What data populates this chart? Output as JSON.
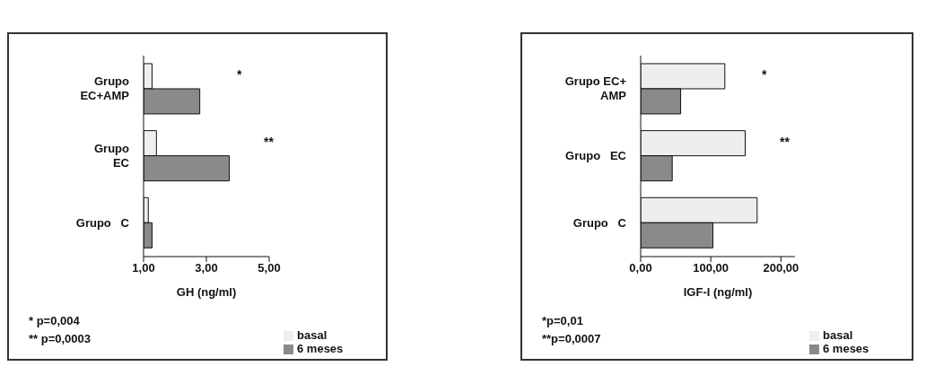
{
  "chart_data": [
    {
      "type": "bar",
      "orientation": "horizontal",
      "categories": [
        "Grupo\nEC+AMP",
        "Grupo\nEC",
        "Grupo   C"
      ],
      "xlabel": "GH (ng/ml)",
      "xlim": [
        1,
        5
      ],
      "xticks": [
        {
          "value": 1,
          "label": "1,00"
        },
        {
          "value": 3,
          "label": "3,00"
        },
        {
          "value": 5,
          "label": "5,00"
        }
      ],
      "legend": "bottom right",
      "grid": false,
      "series": [
        {
          "name": "basal",
          "color": "#eeeeee",
          "values": [
            1.27,
            1.41,
            1.15
          ]
        },
        {
          "name": "6 meses",
          "color": "#8a8a8a",
          "values": [
            2.79,
            3.73,
            1.27
          ]
        }
      ],
      "annotations": [
        {
          "text": "*",
          "x": 2.79,
          "y": "Grupo\nEC+AMP"
        },
        {
          "text": "**",
          "x": 3.73,
          "y": "Grupo\nEC"
        },
        "* p=0,004",
        "** p=0,0003"
      ]
    },
    {
      "type": "bar",
      "orientation": "horizontal",
      "categories": [
        "Grupo EC+\nAMP",
        "Grupo   EC",
        "Grupo   C"
      ],
      "xlabel": "IGF-I (ng/ml)",
      "xlim": [
        0,
        220
      ],
      "xticks": [
        {
          "value": 0,
          "label": "0,00"
        },
        {
          "value": 100,
          "label": "100,00"
        },
        {
          "value": 200,
          "label": "200,00"
        }
      ],
      "legend": "bottom right",
      "grid": false,
      "series": [
        {
          "name": "basal",
          "color": "#eeeeee",
          "values": [
            120,
            149,
            166
          ]
        },
        {
          "name": "6 meses",
          "color": "#8a8a8a",
          "values": [
            57,
            45,
            103
          ]
        }
      ],
      "annotations": [
        {
          "text": "*",
          "x": 120,
          "y": "Grupo EC+\nAMP"
        },
        {
          "text": "**",
          "x": 149,
          "y": "Grupo   EC"
        },
        "*p=0,01",
        "**p=0,0007"
      ]
    }
  ]
}
